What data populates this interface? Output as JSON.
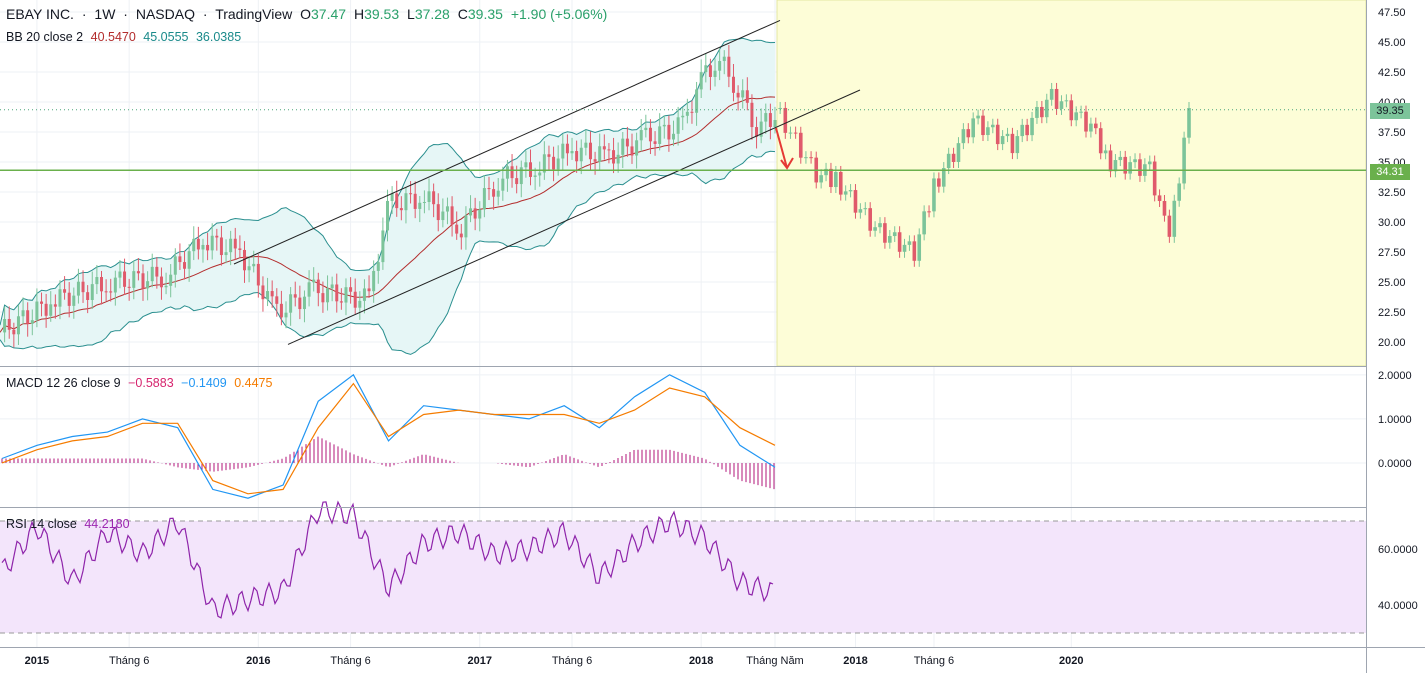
{
  "header": {
    "symbol": "EBAY INC.",
    "interval": "1W",
    "exchange": "NASDAQ",
    "brand": "TradingView",
    "o_label": "O",
    "o": "37.47",
    "h_label": "H",
    "h": "39.53",
    "l_label": "L",
    "l": "37.28",
    "c_label": "C",
    "c": "39.35",
    "change": "+1.90 (+5.06%)",
    "sep": "·"
  },
  "bb_legend": {
    "label": "BB 20 close 2",
    "basis": "40.5470",
    "upper": "45.0555",
    "lower": "36.0385"
  },
  "macd_legend": {
    "label": "MACD 12 26 close 9",
    "hist": "−0.5883",
    "macd": "−0.1409",
    "signal": "0.4475"
  },
  "rsi_legend": {
    "label": "RSI 14 close",
    "value": "44.2180"
  },
  "badges": {
    "last_price": "39.35",
    "line_price": "34.31"
  },
  "colors": {
    "up": "#7cc49a",
    "down": "#e05a6b",
    "bb_fill": "#e6f6f6",
    "bb_line": "#2a8f8f",
    "basis": "#b32d2d",
    "macd": "#2196f3",
    "signal": "#f57c00",
    "hist": "#b0157a",
    "rsi": "#8e24aa",
    "rsi_band": "#f3e5fb",
    "projection": "#fdfdd7",
    "hline": "#6ab04c",
    "grid": "#eef1f5",
    "arrow": "#e53935"
  },
  "chart_data": [
    {
      "type": "candlestick",
      "title": "EBAY INC. · 1W · NASDAQ",
      "y_ticks": [
        "47.50",
        "45.00",
        "42.50",
        "40.00",
        "37.50",
        "35.00",
        "32.50",
        "30.00",
        "27.50",
        "25.00",
        "22.50",
        "20.00"
      ],
      "ylim": [
        18.0,
        48.5
      ],
      "x_ticks": [
        {
          "label": "2015",
          "date": "2015-01"
        },
        {
          "label": "Tháng 6",
          "date": "2015-06"
        },
        {
          "label": "2016",
          "date": "2016-01"
        },
        {
          "label": "Tháng 6",
          "date": "2016-06"
        },
        {
          "label": "2017",
          "date": "2017-01"
        },
        {
          "label": "Tháng 6",
          "date": "2017-06"
        },
        {
          "label": "2018",
          "date": "2018-01"
        },
        {
          "label": "Tháng Năm",
          "date": "2018-05"
        },
        {
          "label": "2018",
          "date": "2018-09"
        },
        {
          "label": "Tháng 6",
          "date": "2019-01"
        },
        {
          "label": "2020",
          "date": "2019-08"
        }
      ],
      "horizontal_line": 34.31,
      "last_price": 39.35,
      "close_series": {
        "x": [
          "2014-11",
          "2015-02",
          "2015-05",
          "2015-08",
          "2015-10",
          "2015-12",
          "2016-02",
          "2016-04",
          "2016-07",
          "2016-08",
          "2016-10",
          "2016-12",
          "2017-02",
          "2017-04",
          "2017-06",
          "2017-08",
          "2017-10",
          "2017-12",
          "2018-01",
          "2018-02",
          "2018-03",
          "2018-04",
          "2018-05"
        ],
        "y": [
          20.8,
          23.5,
          25.0,
          25.5,
          28.5,
          27.5,
          22.5,
          24.3,
          23.5,
          31.5,
          32.0,
          29.5,
          33.5,
          34.5,
          36.0,
          35.5,
          37.0,
          38.0,
          42.0,
          43.5,
          41.0,
          38.0,
          38.5
        ]
      },
      "bollinger": {
        "period": 20,
        "mult": 2,
        "basis": 40.547,
        "upper": 45.0555,
        "lower": 36.0385
      },
      "projection_series": {
        "x": [
          "2018-05",
          "2018-07",
          "2018-08",
          "2018-10",
          "2018-12",
          "2019-01",
          "2019-03",
          "2019-05",
          "2019-07",
          "2019-09",
          "2019-10",
          "2019-12",
          "2020-01",
          "2020-02"
        ],
        "y": [
          39.5,
          34.0,
          33.5,
          29.5,
          27.5,
          33.0,
          38.5,
          36.5,
          40.5,
          38.0,
          35.0,
          34.5,
          28.5,
          39.5
        ]
      }
    },
    {
      "type": "line",
      "title": "MACD 12 26 close 9",
      "y_ticks": [
        "2.0000",
        "1.0000",
        "0.0000"
      ],
      "ylim": [
        -1.0,
        2.2
      ],
      "series": [
        {
          "name": "MACD",
          "values": [
            0.1,
            0.4,
            0.6,
            0.7,
            1.0,
            0.8,
            -0.6,
            -0.8,
            -0.5,
            1.4,
            2.0,
            0.5,
            1.3,
            1.2,
            1.1,
            1.0,
            1.3,
            0.8,
            1.5,
            2.0,
            1.6,
            0.4,
            -0.1
          ]
        },
        {
          "name": "Signal",
          "values": [
            0.0,
            0.3,
            0.5,
            0.6,
            0.9,
            0.9,
            -0.4,
            -0.7,
            -0.6,
            0.8,
            1.8,
            0.6,
            1.1,
            1.2,
            1.1,
            1.1,
            1.1,
            0.9,
            1.2,
            1.7,
            1.5,
            0.8,
            0.4
          ]
        },
        {
          "name": "Histogram",
          "values": [
            0.1,
            0.1,
            0.1,
            0.1,
            0.1,
            -0.1,
            -0.2,
            -0.1,
            0.1,
            0.6,
            0.2,
            -0.1,
            0.2,
            0.0,
            0.0,
            -0.1,
            0.2,
            -0.1,
            0.3,
            0.3,
            0.1,
            -0.4,
            -0.6
          ]
        }
      ]
    },
    {
      "type": "line",
      "title": "RSI 14 close",
      "y_ticks": [
        "60.0000",
        "40.0000"
      ],
      "ylim": [
        25,
        75
      ],
      "band": [
        30,
        70
      ],
      "series": [
        {
          "name": "RSI",
          "values": [
            52,
            68,
            48,
            66,
            58,
            70,
            38,
            42,
            45,
            74,
            72,
            46,
            62,
            66,
            58,
            60,
            66,
            50,
            62,
            70,
            64,
            48,
            44.218
          ]
        }
      ]
    }
  ]
}
